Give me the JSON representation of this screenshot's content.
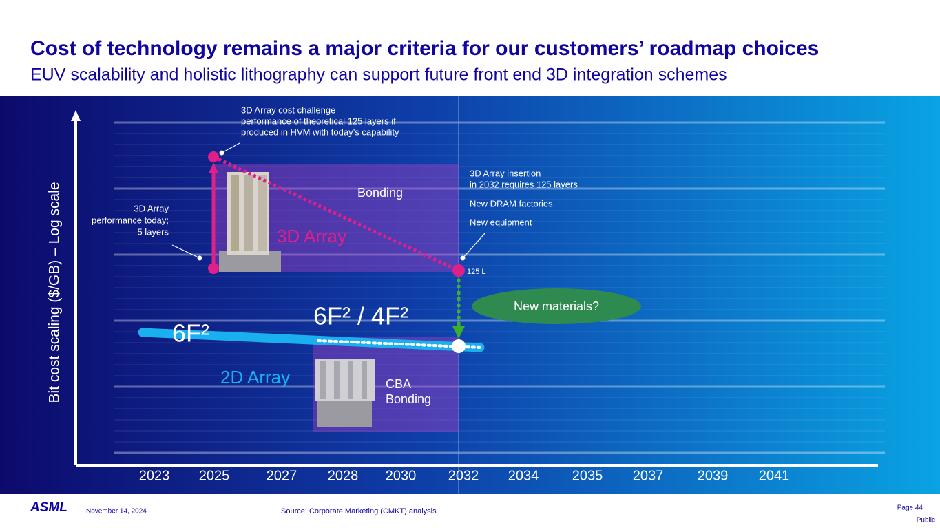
{
  "header": {
    "title": "Cost of technology remains a major criteria for our customers’ roadmap choices",
    "subtitle": "EUV scalability and holistic lithography can support future front end 3D integration schemes"
  },
  "diagram": {
    "y_axis_label": "Bit cost scaling ($/GB) – Log scale",
    "x_labels": [
      "2023",
      "2025",
      "2027",
      "2028",
      "2030",
      "2032",
      "2034",
      "2035",
      "2037",
      "2039",
      "2041"
    ],
    "cost_challenge": [
      "3D Array cost challenge",
      "performance of theoretical 125 layers if",
      "produced in HVM with today’s capability"
    ],
    "performance_today": [
      "3D Array",
      "performance today;",
      "5 layers"
    ],
    "insertion": [
      "3D Array insertion",
      "in 2032 requires 125 layers",
      "New DRAM factories",
      "New equipment"
    ],
    "bonding": "Bonding",
    "array_3d": "3D Array",
    "layers_125": "125 L",
    "new_materials": "New materials?",
    "f6": "6F²",
    "f6_f4": "6F² / 4F²",
    "array_2d": "2D Array",
    "cba_bonding": [
      "CBA",
      "Bonding"
    ]
  },
  "footer": {
    "logo": "ASML",
    "date": "November 14, 2024",
    "source": "Source: Corporate Marketing (CMKT) analysis",
    "page": "Page 44",
    "classification": "Public"
  }
}
